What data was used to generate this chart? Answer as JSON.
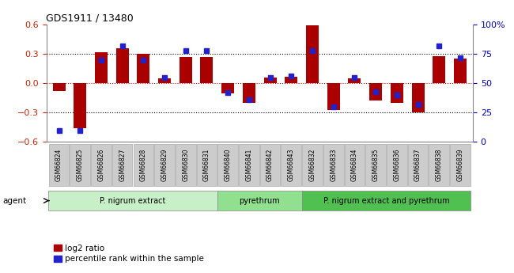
{
  "title": "GDS1911 / 13480",
  "categories": [
    "GSM66824",
    "GSM66825",
    "GSM66826",
    "GSM66827",
    "GSM66828",
    "GSM66829",
    "GSM66830",
    "GSM66831",
    "GSM66840",
    "GSM66841",
    "GSM66842",
    "GSM66843",
    "GSM66832",
    "GSM66833",
    "GSM66834",
    "GSM66835",
    "GSM66836",
    "GSM66837",
    "GSM66838",
    "GSM66839"
  ],
  "log2_ratio": [
    -0.08,
    -0.46,
    0.32,
    0.36,
    0.3,
    0.05,
    0.27,
    0.27,
    -0.1,
    -0.2,
    0.06,
    0.07,
    0.59,
    -0.27,
    0.05,
    -0.18,
    -0.2,
    -0.3,
    0.28,
    0.25
  ],
  "percentile": [
    10,
    10,
    70,
    82,
    70,
    55,
    78,
    78,
    42,
    36,
    55,
    56,
    78,
    30,
    55,
    43,
    40,
    32,
    82,
    72
  ],
  "groups": [
    {
      "label": "P. nigrum extract",
      "start": 0,
      "end": 8,
      "color": "#c8f0c8"
    },
    {
      "label": "pyrethrum",
      "start": 8,
      "end": 12,
      "color": "#90e090"
    },
    {
      "label": "P. nigrum extract and pyrethrum",
      "start": 12,
      "end": 20,
      "color": "#50c050"
    }
  ],
  "bar_color": "#aa0000",
  "dot_color": "#2222cc",
  "ylim_left": [
    -0.6,
    0.6
  ],
  "ylim_right": [
    0,
    100
  ],
  "yticks_left": [
    -0.6,
    -0.3,
    0.0,
    0.3,
    0.6
  ],
  "yticks_right": [
    0,
    25,
    50,
    75,
    100
  ],
  "ytick_labels_right": [
    "0",
    "25",
    "50",
    "75",
    "100%"
  ],
  "legend_items": [
    {
      "label": "log2 ratio",
      "color": "#aa0000"
    },
    {
      "label": "percentile rank within the sample",
      "color": "#2222cc"
    }
  ],
  "agent_label": "agent",
  "bar_width": 0.6,
  "tick_box_color": "#cccccc",
  "tick_box_edge": "#aaaaaa"
}
